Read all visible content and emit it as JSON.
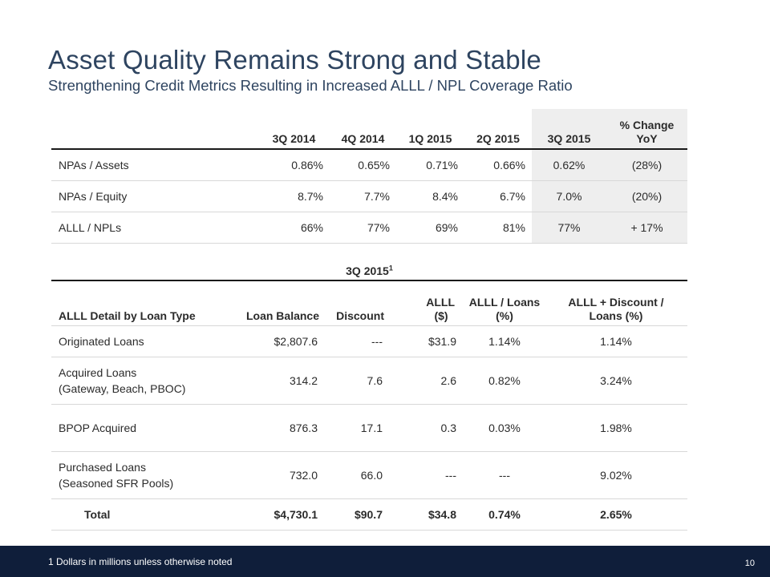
{
  "title": "Asset Quality Remains Strong and Stable",
  "subtitle": "Strengthening Credit Metrics Resulting in Increased ALLL / NPL Coverage Ratio",
  "table1": {
    "headers": [
      "3Q 2014",
      "4Q 2014",
      "1Q 2015",
      "2Q 2015",
      "3Q 2015",
      "% Change",
      "YoY"
    ],
    "rows": [
      {
        "label": "NPAs / Assets",
        "values": [
          "0.86%",
          "0.65%",
          "0.71%",
          "0.66%",
          "0.62%",
          "(28%)"
        ]
      },
      {
        "label": "NPAs / Equity",
        "values": [
          "8.7%",
          "7.7%",
          "8.4%",
          "6.7%",
          "7.0%",
          "(20%)"
        ]
      },
      {
        "label": "ALLL / NPLs",
        "values": [
          "66%",
          "77%",
          "69%",
          "81%",
          "77%",
          "+ 17%"
        ]
      }
    ]
  },
  "table2": {
    "super_header": "3Q 2015",
    "super_header_note": "1",
    "headers": {
      "type": "ALLL Detail by Loan Type",
      "balance": "Loan Balance",
      "discount": "Discount",
      "alll_1": "ALLL",
      "alll_2": "($)",
      "alll_loans_1": "ALLL / Loans",
      "alll_loans_2": "(%)",
      "alll_disc_1": "ALLL + Discount /",
      "alll_disc_2": "Loans (%)"
    },
    "rows": [
      {
        "label1": "Originated Loans",
        "label2": "",
        "values": [
          "$2,807.6",
          "---",
          "$31.9",
          "1.14%",
          "1.14%"
        ]
      },
      {
        "label1": "Acquired Loans",
        "label2": "(Gateway, Beach, PBOC)",
        "values": [
          "314.2",
          "7.6",
          "2.6",
          "0.82%",
          "3.24%"
        ]
      },
      {
        "label1": "BPOP Acquired",
        "label2": "",
        "values": [
          "876.3",
          "17.1",
          "0.3",
          "0.03%",
          "1.98%"
        ]
      },
      {
        "label1": "Purchased Loans",
        "label2": "(Seasoned SFR Pools)",
        "values": [
          "732.0",
          "66.0",
          "---",
          "---",
          "9.02%"
        ]
      }
    ],
    "total": {
      "label": "Total",
      "values": [
        "$4,730.1",
        "$90.7",
        "$34.8",
        "0.74%",
        "2.65%"
      ]
    }
  },
  "footer": {
    "footnote": "1  Dollars in millions unless otherwise noted",
    "page_number": "10",
    "background_color": "#0f1e3a"
  },
  "colors": {
    "title": "#2e4460",
    "highlight_column": "#eeeeee"
  }
}
